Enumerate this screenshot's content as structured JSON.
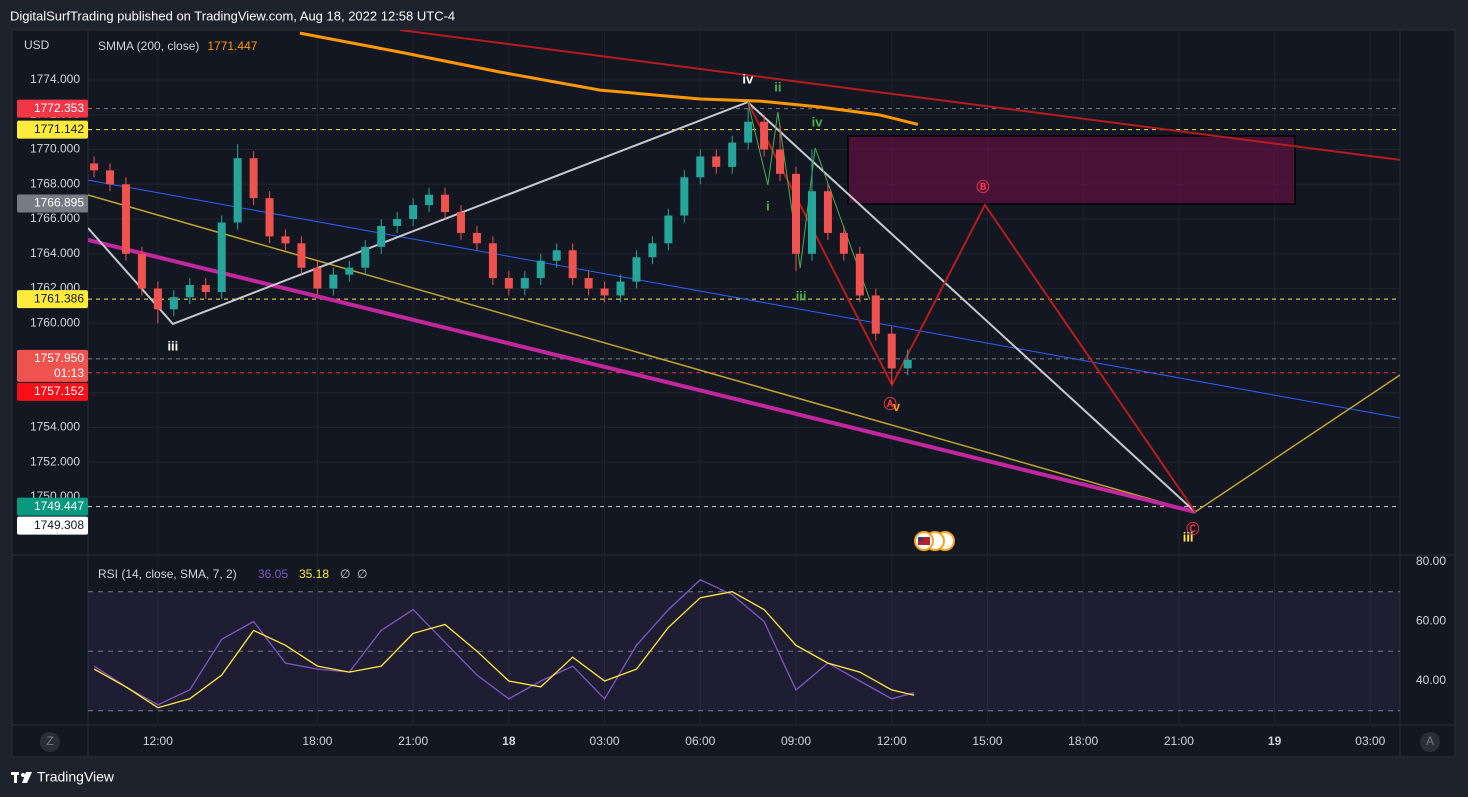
{
  "header": "DigitalSurfTrading published on TradingView.com, Aug 18, 2022 12:58 UTC-4",
  "footer": "TradingView",
  "buttons": [
    "Z",
    "A"
  ],
  "chart_data": [
    {
      "type": "candlestick",
      "currency": "USD",
      "x": [
        10,
        10.5,
        11,
        11.5,
        12,
        12.5,
        13,
        13.5,
        14,
        14.5,
        15,
        15.5,
        16,
        16.5,
        17,
        17.5,
        18,
        18.5,
        19,
        19.5,
        20,
        20.5,
        21,
        21.5,
        22,
        22.5,
        23,
        23.5,
        24,
        24.5,
        25,
        25.5,
        26,
        26.5,
        27,
        27.5,
        28,
        28.5,
        29,
        29.5,
        30,
        30.5,
        31,
        31.5,
        32,
        32.5,
        33,
        33.5,
        34,
        34.5,
        35,
        35.5
      ],
      "open": [
        1769.2,
        1768.8,
        1768.0,
        1764.0,
        1762.0,
        1760.8,
        1761.5,
        1762.2,
        1761.8,
        1765.8,
        1769.5,
        1767.2,
        1765.0,
        1764.6,
        1763.2,
        1762.0,
        1762.8,
        1763.2,
        1764.4,
        1765.6,
        1766.0,
        1766.8,
        1767.4,
        1766.4,
        1765.2,
        1764.6,
        1762.6,
        1762.0,
        1762.6,
        1763.6,
        1764.2,
        1762.6,
        1762.0,
        1761.6,
        1762.4,
        1763.8,
        1764.6,
        1766.2,
        1768.4,
        1769.6,
        1769.0,
        1770.4,
        1771.6,
        1770.0,
        1768.6,
        1764.0,
        1767.6,
        1765.2,
        1764.0,
        1761.6,
        1759.4,
        1757.4
      ],
      "high": [
        1769.6,
        1769.2,
        1768.4,
        1764.4,
        1762.4,
        1761.9,
        1762.6,
        1762.6,
        1766.2,
        1770.3,
        1769.9,
        1767.6,
        1765.4,
        1765.0,
        1763.6,
        1763.2,
        1763.6,
        1764.8,
        1766.0,
        1766.4,
        1767.2,
        1767.8,
        1767.8,
        1766.8,
        1765.6,
        1765.0,
        1763.0,
        1763.0,
        1764.0,
        1764.6,
        1764.6,
        1763.0,
        1762.4,
        1762.8,
        1764.2,
        1765.0,
        1766.6,
        1768.8,
        1770.0,
        1770.0,
        1770.8,
        1772.35,
        1772.0,
        1771.4,
        1769.0,
        1770.0,
        1768.0,
        1765.6,
        1764.4,
        1762.0,
        1759.8,
        1758.5
      ],
      "low": [
        1768.4,
        1767.6,
        1763.6,
        1761.6,
        1760.0,
        1760.4,
        1761.1,
        1761.4,
        1761.4,
        1765.4,
        1766.8,
        1764.6,
        1764.2,
        1762.8,
        1761.6,
        1761.6,
        1762.4,
        1762.8,
        1764.0,
        1765.2,
        1765.6,
        1766.4,
        1766.0,
        1764.8,
        1764.2,
        1762.2,
        1761.6,
        1761.6,
        1762.2,
        1763.2,
        1762.2,
        1761.6,
        1761.2,
        1761.2,
        1762.0,
        1763.4,
        1764.2,
        1765.8,
        1768.0,
        1768.6,
        1768.6,
        1770.0,
        1769.6,
        1768.2,
        1763.0,
        1763.6,
        1764.8,
        1763.6,
        1761.2,
        1759.0,
        1756.5,
        1757.0
      ],
      "close": [
        1768.8,
        1768.0,
        1764.0,
        1762.0,
        1760.8,
        1761.5,
        1762.2,
        1761.8,
        1765.8,
        1769.5,
        1767.2,
        1765.0,
        1764.6,
        1763.2,
        1762.0,
        1762.8,
        1763.2,
        1764.4,
        1765.6,
        1766.0,
        1766.8,
        1767.4,
        1766.4,
        1765.2,
        1764.6,
        1762.6,
        1762.0,
        1762.6,
        1763.6,
        1764.2,
        1762.6,
        1762.0,
        1761.6,
        1762.4,
        1763.8,
        1764.6,
        1766.2,
        1768.4,
        1769.6,
        1769.0,
        1770.4,
        1771.6,
        1770.0,
        1768.6,
        1764.0,
        1767.6,
        1765.2,
        1764.0,
        1761.6,
        1759.4,
        1757.4,
        1757.9
      ],
      "up_color": "#26a69a",
      "down_color": "#ef5350",
      "xlim": [
        9.81,
        50.93
      ],
      "xticks": [
        {
          "value": 12,
          "label": "12:00"
        },
        {
          "value": 17,
          "label": "18:00"
        },
        {
          "value": 20,
          "label": "21:00"
        },
        {
          "value": 23,
          "label": "18"
        },
        {
          "value": 26,
          "label": "03:00"
        },
        {
          "value": 29,
          "label": "06:00"
        },
        {
          "value": 32,
          "label": "09:00"
        },
        {
          "value": 35,
          "label": "12:00"
        },
        {
          "value": 38,
          "label": "15:00"
        },
        {
          "value": 41,
          "label": "18:00"
        },
        {
          "value": 44,
          "label": "21:00"
        },
        {
          "value": 47,
          "label": "19"
        },
        {
          "value": 50,
          "label": "03:00"
        }
      ],
      "ylim": [
        1746.66,
        1776.88
      ],
      "yticks": [
        {
          "value": 1750,
          "label": "1750.000"
        },
        {
          "value": 1752,
          "label": "1752.000"
        },
        {
          "value": 1754,
          "label": "1754.000"
        },
        {
          "value": 1756,
          "label": "1756.000"
        },
        {
          "value": 1758,
          "label": "1758.000"
        },
        {
          "value": 1760,
          "label": "1760.000"
        },
        {
          "value": 1762,
          "label": "1762.000"
        },
        {
          "value": 1764,
          "label": "1764.000"
        },
        {
          "value": 1766,
          "label": "1766.000"
        },
        {
          "value": 1768,
          "label": "1768.000"
        },
        {
          "value": 1770,
          "label": "1770.000"
        },
        {
          "value": 1772,
          "label": "1772.000"
        },
        {
          "value": 1774,
          "label": "1774.000"
        }
      ],
      "grid": true,
      "indicator": {
        "name": "SMMA (200, close)",
        "value": 1771.447,
        "color": "#ff9800",
        "x": [
          16.45,
          19.59,
          22.72,
          25.86,
          28.99,
          30.87,
          32.75,
          34.63,
          35.82
        ],
        "values": [
          1776.7,
          1775.61,
          1774.46,
          1773.42,
          1772.91,
          1772.79,
          1772.45,
          1771.99,
          1771.447
        ]
      },
      "price_labels": [
        {
          "value": 1772.353,
          "label": "1772.353",
          "color": "#f23645",
          "text_color": "#ffffff",
          "line": "#787b86"
        },
        {
          "value": 1771.142,
          "label": "1771.142",
          "color": "#ffeb3b",
          "text_color": "#131722",
          "line": "#ffeb3b"
        },
        {
          "value": 1766.895,
          "label": "1766.895",
          "color": "#787b86",
          "text_color": "#ffffff"
        },
        {
          "value": 1761.386,
          "label": "1761.386",
          "color": "#ffeb3b",
          "text_color": "#131722",
          "line": "#ffeb3b"
        },
        {
          "value": 1757.95,
          "label": "1757.950",
          "countdown": "01:13",
          "color": "#ef5350",
          "text_color": "#ffffff",
          "line": "#787b86"
        },
        {
          "value": 1757.152,
          "label": "1757.152",
          "color": "#f7101a",
          "text_color": "#ffffff",
          "line": "#f23645"
        },
        {
          "value": 1749.447,
          "label": "1749.447",
          "color": "#089981",
          "text_color": "#ffffff",
          "line": "#d1d4dc"
        },
        {
          "value": 1749.308,
          "label": "1749.308",
          "color": "#ffffff",
          "text_color": "#131722"
        }
      ],
      "zone": {
        "x": [
          33.63,
          47.64
        ],
        "y": [
          1766.86,
          1770.78
        ],
        "color": "#880e4f"
      },
      "lines": [
        {
          "color": "#b71c1c",
          "width": 2,
          "x": [
            19.59,
            50.93
          ],
          "values": [
            1776.88,
            1769.4
          ]
        },
        {
          "color": "#2962ff",
          "width": 1,
          "x": [
            9.81,
            50.93
          ],
          "values": [
            1768.24,
            1754.55
          ]
        },
        {
          "color": "#c0a528",
          "width": 1.5,
          "x": [
            9.81,
            44.51,
            50.93
          ],
          "values": [
            1767.38,
            1749.14,
            1757.02
          ]
        },
        {
          "color": "#c2279e",
          "width": 4,
          "x": [
            9.81,
            44.51
          ],
          "values": [
            1764.79,
            1749.14
          ]
        },
        {
          "color": "#c8c8d0",
          "width": 2,
          "x": [
            9.81,
            12.47,
            30.49,
            44.51
          ],
          "values": [
            1765.48,
            1759.96,
            1772.73,
            1749.14
          ]
        },
        {
          "color": "#b71c1c",
          "width": 2,
          "x": [
            30.49,
            35.01,
            37.92,
            44.51
          ],
          "values": [
            1772.73,
            1756.45,
            1766.81,
            1749.14
          ]
        },
        {
          "color": "#4caf50",
          "width": 1,
          "x": [
            30.49,
            31.12,
            31.43,
            32.13,
            32.6,
            34.32
          ],
          "values": [
            1772.73,
            1767.96,
            1772.16,
            1763.18,
            1770.09,
            1761.34
          ]
        }
      ],
      "annotations": [
        {
          "text": "iv",
          "x": 30.49,
          "y": 1774.0,
          "color": "#ffffff"
        },
        {
          "text": "ii",
          "x": 31.43,
          "y": 1773.54,
          "color": "#4caf50"
        },
        {
          "text": "iv",
          "x": 32.66,
          "y": 1771.53,
          "color": "#4caf50"
        },
        {
          "text": "i",
          "x": 31.12,
          "y": 1766.69,
          "color": "#4caf50"
        },
        {
          "text": "iii",
          "x": 32.16,
          "y": 1761.51,
          "color": "#4caf50"
        },
        {
          "text": "iii",
          "x": 12.47,
          "y": 1758.63,
          "color": "#ffffff"
        },
        {
          "text": "Ⓐ",
          "x": 34.95,
          "y": 1755.3,
          "color": "#f23645"
        },
        {
          "text": "v",
          "x": 35.15,
          "y": 1755.15,
          "color": "#ff9800"
        },
        {
          "text": "Ⓑ",
          "x": 37.86,
          "y": 1767.78,
          "color": "#f23645"
        },
        {
          "text": "Ⓒ",
          "x": 44.44,
          "y": 1748.1,
          "color": "#f23645"
        },
        {
          "text": "iii",
          "x": 44.29,
          "y": 1747.64,
          "color": "#ffeb3b"
        }
      ]
    },
    {
      "type": "line",
      "title": "RSI (14, close, SMA, 7, 2)",
      "x": [
        10,
        11,
        12,
        13,
        14,
        15,
        16,
        17,
        18,
        19,
        20,
        21,
        22,
        23,
        24,
        25,
        26,
        27,
        28,
        29,
        30,
        31,
        32,
        33,
        34,
        35,
        35.7
      ],
      "series": [
        {
          "color": "#7e57c2",
          "last_value": 36.05,
          "values": [
            45,
            38,
            32,
            37,
            54,
            60,
            46,
            44,
            43,
            57,
            64,
            53,
            42,
            34,
            40,
            45,
            34,
            52,
            64,
            74,
            69,
            60,
            37,
            46,
            40,
            34,
            36.05
          ]
        },
        {
          "color": "#ffeb3b",
          "last_value": 35.18,
          "values": [
            44,
            38,
            31,
            34,
            42,
            57,
            52,
            45,
            43,
            45,
            56,
            59,
            50,
            40,
            38,
            48,
            40,
            44,
            58,
            68,
            70,
            64,
            52,
            46,
            43,
            37,
            35.18
          ]
        }
      ],
      "legend_extra": [
        "∅",
        "∅"
      ],
      "xlim": [
        9.81,
        50.93
      ],
      "ylim": [
        25.2,
        82.35
      ],
      "yticks": [
        {
          "value": 40,
          "label": "40.00"
        },
        {
          "value": 60,
          "label": "60.00"
        },
        {
          "value": 80,
          "label": "80.00"
        }
      ],
      "bands": [
        70,
        50,
        30
      ],
      "band_color": "#7e57c2"
    }
  ]
}
